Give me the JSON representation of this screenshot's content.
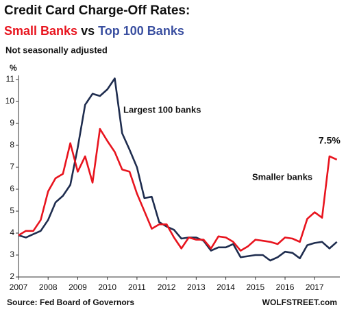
{
  "chart_data": {
    "type": "line",
    "title": "Credit Card Charge-Off Rates:",
    "subtitle_joiner": "vs",
    "note": "Not seasonally adjusted",
    "y_unit": "%",
    "source": "Source: Fed Board of Governors",
    "credit": "WOLFSTREET.com",
    "annotations": [
      "Largest 100 banks",
      "Smaller banks"
    ],
    "x": [
      2007,
      2007.25,
      2007.5,
      2007.75,
      2008,
      2008.25,
      2008.5,
      2008.75,
      2009,
      2009.25,
      2009.5,
      2009.75,
      2010,
      2010.25,
      2010.5,
      2010.75,
      2011,
      2011.25,
      2011.5,
      2011.75,
      2012,
      2012.25,
      2012.5,
      2012.75,
      2013,
      2013.25,
      2013.5,
      2013.75,
      2014,
      2014.25,
      2014.5,
      2014.75,
      2015,
      2015.25,
      2015.5,
      2015.75,
      2016,
      2016.25,
      2016.5,
      2016.75,
      2017,
      2017.25,
      2017.5,
      2017.75
    ],
    "series": [
      {
        "name": "Small Banks",
        "color": "#e8141e",
        "values": [
          3.9,
          4.1,
          4.1,
          4.6,
          5.9,
          6.5,
          6.7,
          8.1,
          6.8,
          7.5,
          6.3,
          8.75,
          8.2,
          7.7,
          6.9,
          6.8,
          5.8,
          5.0,
          4.2,
          4.4,
          4.4,
          3.8,
          3.3,
          3.8,
          3.7,
          3.7,
          3.3,
          3.85,
          3.8,
          3.6,
          3.2,
          3.4,
          3.7,
          3.65,
          3.6,
          3.5,
          3.8,
          3.75,
          3.6,
          4.65,
          4.95,
          4.7,
          7.5,
          7.35
        ],
        "value_labels": [
          null,
          null,
          null,
          null,
          null,
          null,
          null,
          null,
          null,
          null,
          null,
          null,
          null,
          null,
          null,
          null,
          null,
          null,
          null,
          null,
          null,
          null,
          null,
          null,
          null,
          null,
          null,
          null,
          null,
          null,
          null,
          null,
          null,
          null,
          null,
          null,
          null,
          null,
          null,
          null,
          null,
          null,
          "7.5%",
          null
        ]
      },
      {
        "name": "Top 100 Banks",
        "color": "#1f2d4f",
        "values": [
          3.9,
          3.8,
          3.95,
          4.1,
          4.6,
          5.4,
          5.7,
          6.2,
          7.9,
          9.85,
          10.35,
          10.25,
          10.55,
          11.05,
          8.55,
          7.8,
          7.0,
          5.6,
          5.65,
          4.5,
          4.3,
          4.15,
          3.75,
          3.8,
          3.8,
          3.65,
          3.2,
          3.35,
          3.35,
          3.5,
          2.9,
          2.95,
          3.0,
          3.0,
          2.75,
          2.9,
          3.15,
          3.1,
          2.85,
          3.45,
          3.55,
          3.6,
          3.3,
          3.6
        ]
      }
    ],
    "xlim": [
      2007,
      2017.85
    ],
    "xticks": [
      2007,
      2008,
      2009,
      2010,
      2011,
      2012,
      2013,
      2014,
      2015,
      2016,
      2017
    ],
    "ylim": [
      2,
      11
    ],
    "yticks": [
      2,
      3,
      4,
      5,
      6,
      7,
      8,
      9,
      10,
      11
    ],
    "grid": false
  }
}
